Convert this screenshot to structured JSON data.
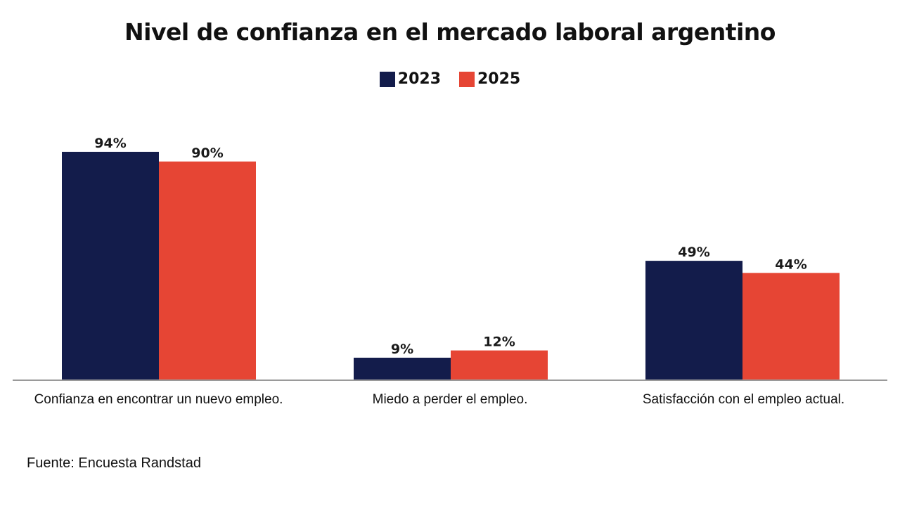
{
  "chart_data": {
    "type": "bar",
    "title": "Nivel de confianza en el mercado laboral argentino",
    "categories": [
      "Confianza en encontrar un nuevo empleo.",
      "Miedo a perder el empleo.",
      "Satisfacción con el empleo actual."
    ],
    "series": [
      {
        "name": "2023",
        "color": "#131c4b",
        "values": [
          94,
          9,
          49
        ],
        "labels": [
          "94%",
          "9%",
          "49%"
        ]
      },
      {
        "name": "2025",
        "color": "#e64534",
        "values": [
          90,
          12,
          44
        ],
        "labels": [
          "90%",
          "12%",
          "44%"
        ]
      }
    ],
    "xlabel": "",
    "ylabel": "",
    "ylim": [
      0,
      100
    ],
    "grid": false,
    "legend": "top-center",
    "source": "Fuente: Encuesta Randstad"
  }
}
